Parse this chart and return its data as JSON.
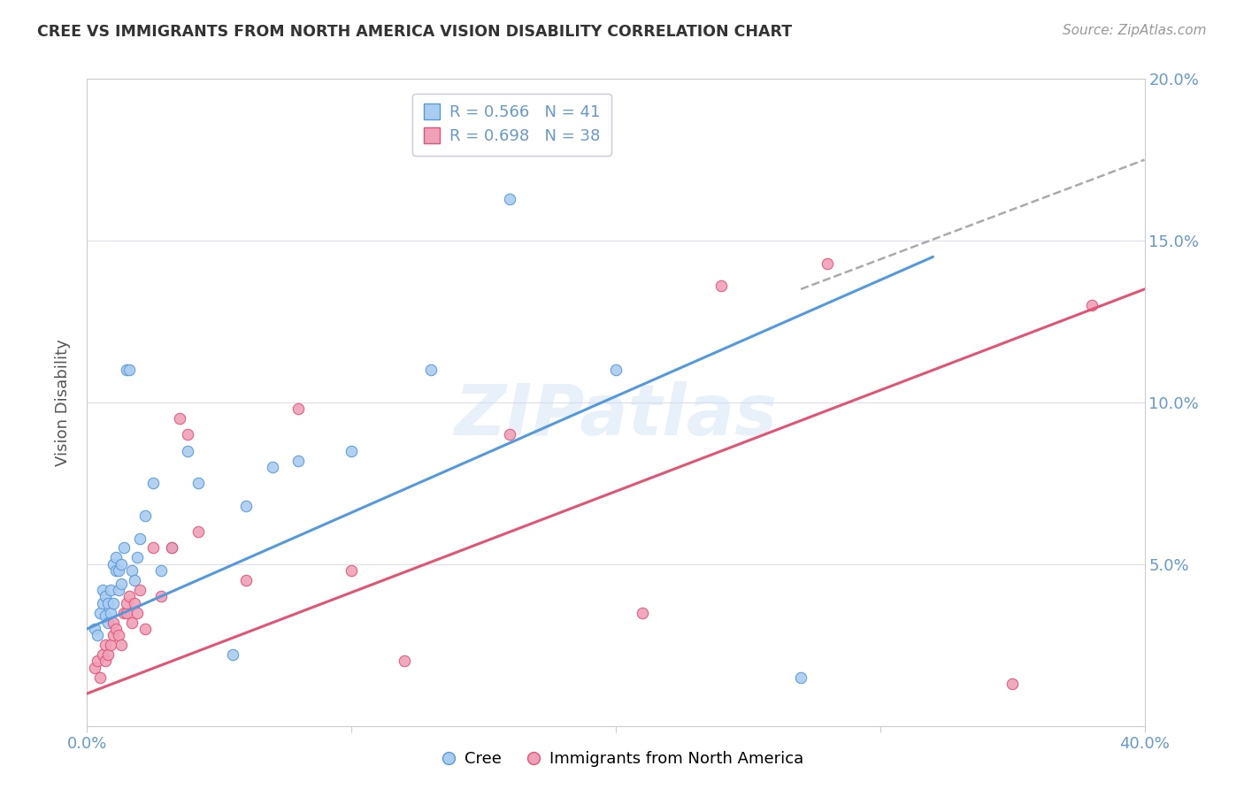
{
  "title": "CREE VS IMMIGRANTS FROM NORTH AMERICA VISION DISABILITY CORRELATION CHART",
  "source": "Source: ZipAtlas.com",
  "ylabel": "Vision Disability",
  "xlim": [
    0.0,
    0.4
  ],
  "ylim": [
    0.0,
    0.2
  ],
  "xticks": [
    0.0,
    0.1,
    0.2,
    0.3,
    0.4
  ],
  "yticks": [
    0.0,
    0.05,
    0.1,
    0.15,
    0.2
  ],
  "xticklabels": [
    "0.0%",
    "",
    "",
    "",
    "40.0%"
  ],
  "yticklabels_right": [
    "",
    "5.0%",
    "10.0%",
    "15.0%",
    "20.0%"
  ],
  "color_cree": "#aaccf0",
  "color_immigrants": "#f0a0b8",
  "color_cree_line": "#5599dd",
  "color_immigrants_line": "#e05575",
  "color_axis_text": "#6699cc",
  "color_title": "#333333",
  "color_source": "#999999",
  "background": "#ffffff",
  "watermark": "ZIPatlas",
  "cree_x": [
    0.003,
    0.004,
    0.005,
    0.006,
    0.006,
    0.007,
    0.007,
    0.008,
    0.008,
    0.009,
    0.009,
    0.01,
    0.01,
    0.011,
    0.011,
    0.012,
    0.012,
    0.013,
    0.013,
    0.014,
    0.015,
    0.016,
    0.017,
    0.018,
    0.019,
    0.02,
    0.022,
    0.025,
    0.028,
    0.032,
    0.038,
    0.042,
    0.055,
    0.06,
    0.07,
    0.08,
    0.1,
    0.13,
    0.16,
    0.2,
    0.27
  ],
  "cree_y": [
    0.03,
    0.028,
    0.035,
    0.038,
    0.042,
    0.034,
    0.04,
    0.032,
    0.038,
    0.035,
    0.042,
    0.038,
    0.05,
    0.048,
    0.052,
    0.042,
    0.048,
    0.05,
    0.044,
    0.055,
    0.11,
    0.11,
    0.048,
    0.045,
    0.052,
    0.058,
    0.065,
    0.075,
    0.048,
    0.055,
    0.085,
    0.075,
    0.022,
    0.068,
    0.08,
    0.082,
    0.085,
    0.11,
    0.163,
    0.11,
    0.015
  ],
  "imm_x": [
    0.003,
    0.004,
    0.005,
    0.006,
    0.007,
    0.007,
    0.008,
    0.009,
    0.01,
    0.01,
    0.011,
    0.012,
    0.013,
    0.014,
    0.015,
    0.015,
    0.016,
    0.017,
    0.018,
    0.019,
    0.02,
    0.022,
    0.025,
    0.028,
    0.032,
    0.035,
    0.038,
    0.042,
    0.06,
    0.08,
    0.1,
    0.12,
    0.16,
    0.21,
    0.24,
    0.28,
    0.35,
    0.38
  ],
  "imm_y": [
    0.018,
    0.02,
    0.015,
    0.022,
    0.02,
    0.025,
    0.022,
    0.025,
    0.028,
    0.032,
    0.03,
    0.028,
    0.025,
    0.035,
    0.035,
    0.038,
    0.04,
    0.032,
    0.038,
    0.035,
    0.042,
    0.03,
    0.055,
    0.04,
    0.055,
    0.095,
    0.09,
    0.06,
    0.045,
    0.098,
    0.048,
    0.02,
    0.09,
    0.035,
    0.136,
    0.143,
    0.013,
    0.13
  ],
  "cree_line_x": [
    0.0,
    0.32
  ],
  "cree_line_y": [
    0.03,
    0.145
  ],
  "imm_line_x": [
    0.0,
    0.4
  ],
  "imm_line_y": [
    0.01,
    0.135
  ],
  "dash_line_x": [
    0.27,
    0.4
  ],
  "dash_line_y": [
    0.135,
    0.175
  ]
}
